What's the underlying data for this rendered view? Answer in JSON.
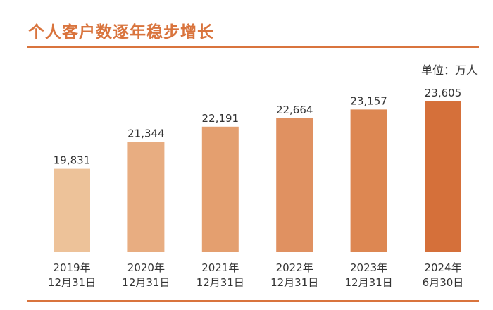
{
  "header": {
    "title": "个人客户数逐年稳步增长",
    "unit": "单位：万人"
  },
  "chart_data": {
    "type": "bar",
    "categories": [
      [
        "2019年",
        "12月31日"
      ],
      [
        "2020年",
        "12月31日"
      ],
      [
        "2021年",
        "12月31日"
      ],
      [
        "2022年",
        "12月31日"
      ],
      [
        "2023年",
        "12月31日"
      ],
      [
        "2024年",
        "6月30日"
      ]
    ],
    "values": [
      19831,
      21344,
      22191,
      22664,
      23157,
      23605
    ],
    "value_labels": [
      "19,831",
      "21,344",
      "22,191",
      "22,664",
      "23,157",
      "23,605"
    ],
    "title": "个人客户数逐年稳步增长",
    "unit": "单位：万人",
    "ylim": [
      15200,
      23605
    ],
    "colors": [
      "#edc299",
      "#e8ad81",
      "#e49f6f",
      "#e09161",
      "#dd8752",
      "#d5703a"
    ],
    "grid": false,
    "legend": "none"
  }
}
